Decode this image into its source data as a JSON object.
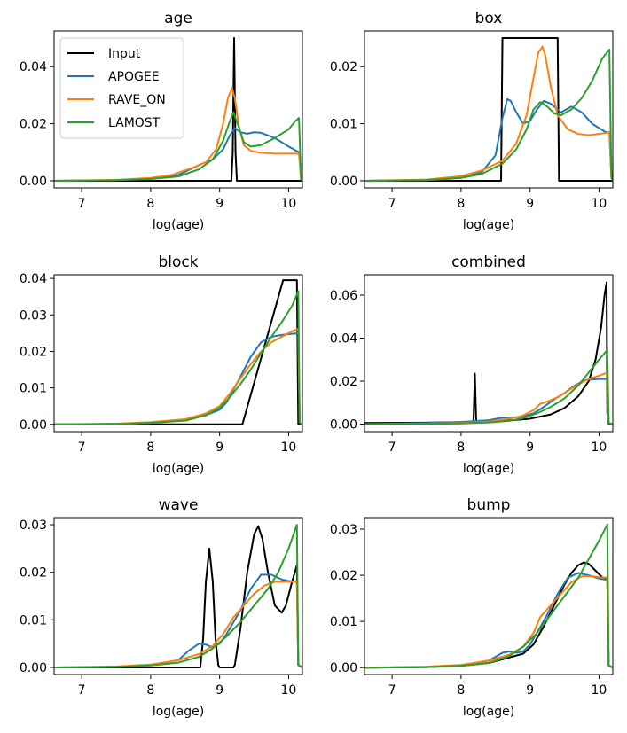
{
  "colors": {
    "Input": "#000000",
    "APOGEE": "#1f77b4",
    "RAVE_ON": "#ff7f0e",
    "LAMOST": "#2ca02c"
  },
  "legend": {
    "placement": "upper-left of first panel",
    "entries": [
      "Input",
      "APOGEE",
      "RAVE_ON",
      "LAMOST"
    ]
  },
  "chart_data": [
    {
      "type": "line",
      "title": "age",
      "xlabel": "log(age)",
      "xlim": [
        6.6,
        10.2
      ],
      "ylim": [
        -0.0025,
        0.0525
      ],
      "xticks": [
        "7",
        "8",
        "9",
        "10"
      ],
      "yticks": [
        "0.00",
        "0.02",
        "0.04"
      ],
      "series": [
        {
          "name": "Input",
          "x": [
            6.6,
            9.17,
            9.19,
            9.21,
            9.23,
            9.25,
            10.2
          ],
          "y": [
            0,
            0,
            0.01,
            0.05,
            0.01,
            0,
            0
          ]
        },
        {
          "name": "APOGEE",
          "x": [
            6.6,
            7.5,
            8.0,
            8.4,
            8.7,
            8.9,
            9.05,
            9.15,
            9.22,
            9.3,
            9.4,
            9.5,
            9.6,
            9.8,
            10.0,
            10.15,
            10.18,
            10.2
          ],
          "y": [
            0,
            0.0002,
            0.0008,
            0.002,
            0.0055,
            0.0075,
            0.011,
            0.016,
            0.0185,
            0.017,
            0.0165,
            0.017,
            0.0168,
            0.015,
            0.012,
            0.01,
            0.0005,
            0
          ]
        },
        {
          "name": "RAVE_ON",
          "x": [
            6.6,
            7.5,
            8.0,
            8.3,
            8.6,
            8.8,
            8.95,
            9.05,
            9.12,
            9.18,
            9.22,
            9.28,
            9.35,
            9.45,
            9.6,
            9.8,
            10.0,
            10.15,
            10.18,
            10.2
          ],
          "y": [
            0,
            0.0003,
            0.001,
            0.002,
            0.0045,
            0.0065,
            0.011,
            0.02,
            0.029,
            0.0325,
            0.029,
            0.019,
            0.0125,
            0.0105,
            0.0098,
            0.0095,
            0.0095,
            0.0095,
            0.0005,
            0
          ]
        },
        {
          "name": "LAMOST",
          "x": [
            6.6,
            7.5,
            8.0,
            8.4,
            8.7,
            8.9,
            9.05,
            9.15,
            9.2,
            9.26,
            9.35,
            9.45,
            9.6,
            9.8,
            10.0,
            10.1,
            10.15,
            10.18,
            10.2
          ],
          "y": [
            0,
            0.0002,
            0.0006,
            0.0015,
            0.004,
            0.0075,
            0.014,
            0.021,
            0.024,
            0.02,
            0.0135,
            0.012,
            0.0125,
            0.015,
            0.018,
            0.021,
            0.022,
            0.0005,
            0
          ]
        }
      ]
    },
    {
      "type": "line",
      "title": "box",
      "xlabel": "log(age)",
      "xlim": [
        6.6,
        10.2
      ],
      "ylim": [
        -0.00125,
        0.02625
      ],
      "xticks": [
        "7",
        "8",
        "9",
        "10"
      ],
      "yticks": [
        "0.00",
        "0.01",
        "0.02"
      ],
      "series": [
        {
          "name": "Input",
          "x": [
            6.6,
            8.58,
            8.6,
            9.4,
            9.42,
            10.2
          ],
          "y": [
            0,
            0,
            0.025,
            0.025,
            0,
            0
          ]
        },
        {
          "name": "APOGEE",
          "x": [
            6.6,
            7.5,
            8.0,
            8.3,
            8.5,
            8.6,
            8.67,
            8.72,
            8.8,
            8.9,
            9.0,
            9.1,
            9.2,
            9.3,
            9.45,
            9.6,
            9.75,
            9.9,
            10.1,
            10.15,
            10.18,
            10.2
          ],
          "y": [
            0,
            0.0001,
            0.0005,
            0.0015,
            0.0045,
            0.011,
            0.0143,
            0.014,
            0.012,
            0.01,
            0.0105,
            0.0125,
            0.014,
            0.0135,
            0.012,
            0.013,
            0.012,
            0.01,
            0.0085,
            0.0085,
            0.0005,
            0
          ]
        },
        {
          "name": "RAVE_ON",
          "x": [
            6.6,
            7.5,
            8.0,
            8.3,
            8.6,
            8.8,
            8.95,
            9.05,
            9.12,
            9.18,
            9.22,
            9.3,
            9.4,
            9.55,
            9.7,
            9.85,
            10.0,
            10.15,
            10.18,
            10.2
          ],
          "y": [
            0,
            0.0002,
            0.0008,
            0.0018,
            0.0035,
            0.0065,
            0.0115,
            0.018,
            0.0225,
            0.0235,
            0.022,
            0.0165,
            0.0115,
            0.009,
            0.0082,
            0.008,
            0.0082,
            0.0085,
            0.0005,
            0
          ]
        },
        {
          "name": "LAMOST",
          "x": [
            6.6,
            7.5,
            8.0,
            8.3,
            8.6,
            8.8,
            8.95,
            9.05,
            9.15,
            9.25,
            9.35,
            9.45,
            9.6,
            9.75,
            9.9,
            10.05,
            10.15,
            10.18,
            10.2
          ],
          "y": [
            0,
            0.0001,
            0.0005,
            0.0012,
            0.003,
            0.0055,
            0.009,
            0.0125,
            0.0138,
            0.013,
            0.0118,
            0.0115,
            0.0125,
            0.0145,
            0.0175,
            0.0215,
            0.023,
            0.0005,
            0
          ]
        }
      ]
    },
    {
      "type": "line",
      "title": "block",
      "xlabel": "log(age)",
      "xlim": [
        6.6,
        10.2
      ],
      "ylim": [
        -0.002,
        0.041
      ],
      "xticks": [
        "7",
        "8",
        "9",
        "10"
      ],
      "yticks": [
        "0.00",
        "0.01",
        "0.02",
        "0.03",
        "0.04"
      ],
      "series": [
        {
          "name": "Input",
          "x": [
            6.6,
            9.33,
            9.92,
            10.12,
            10.14,
            10.2
          ],
          "y": [
            0,
            0,
            0.0395,
            0.0395,
            0,
            0
          ]
        },
        {
          "name": "APOGEE",
          "x": [
            6.6,
            7.5,
            8.0,
            8.5,
            8.8,
            9.0,
            9.1,
            9.2,
            9.3,
            9.45,
            9.6,
            9.75,
            9.9,
            10.05,
            10.14,
            10.16,
            10.2
          ],
          "y": [
            0,
            0.0001,
            0.0004,
            0.0012,
            0.0025,
            0.004,
            0.006,
            0.0095,
            0.013,
            0.0185,
            0.0225,
            0.024,
            0.0245,
            0.0248,
            0.025,
            0.0005,
            0
          ]
        },
        {
          "name": "RAVE_ON",
          "x": [
            6.6,
            7.5,
            8.0,
            8.5,
            8.8,
            9.0,
            9.15,
            9.3,
            9.45,
            9.6,
            9.75,
            9.9,
            10.05,
            10.14,
            10.16,
            10.2
          ],
          "y": [
            0,
            0.0002,
            0.0006,
            0.0014,
            0.003,
            0.005,
            0.0085,
            0.0125,
            0.0165,
            0.02,
            0.0225,
            0.024,
            0.0255,
            0.0262,
            0.0005,
            0
          ]
        },
        {
          "name": "LAMOST",
          "x": [
            6.6,
            7.5,
            8.0,
            8.5,
            8.8,
            9.0,
            9.15,
            9.3,
            9.45,
            9.6,
            9.75,
            9.9,
            10.05,
            10.14,
            10.16,
            10.2
          ],
          "y": [
            0,
            0.0001,
            0.0004,
            0.001,
            0.0025,
            0.0045,
            0.0075,
            0.011,
            0.015,
            0.0195,
            0.024,
            0.028,
            0.0325,
            0.0365,
            0.0005,
            0
          ]
        }
      ]
    },
    {
      "type": "line",
      "title": "combined",
      "xlabel": "log(age)",
      "xlim": [
        6.6,
        10.2
      ],
      "ylim": [
        -0.0035,
        0.0695
      ],
      "xticks": [
        "7",
        "8",
        "9",
        "10"
      ],
      "yticks": [
        "0.00",
        "0.02",
        "0.04",
        "0.06"
      ],
      "series": [
        {
          "name": "Input",
          "x": [
            6.6,
            7.5,
            8.18,
            8.2,
            8.22,
            8.5,
            9.0,
            9.3,
            9.5,
            9.7,
            9.85,
            9.95,
            10.03,
            10.08,
            10.11,
            10.12,
            10.14,
            10.2
          ],
          "y": [
            0.0005,
            0.0007,
            0.001,
            0.0235,
            0.001,
            0.0012,
            0.0025,
            0.0045,
            0.0075,
            0.013,
            0.02,
            0.03,
            0.045,
            0.06,
            0.066,
            0.005,
            0,
            0
          ]
        },
        {
          "name": "APOGEE",
          "x": [
            6.6,
            7.5,
            8.0,
            8.4,
            8.6,
            8.75,
            8.9,
            9.05,
            9.2,
            9.35,
            9.5,
            9.65,
            9.8,
            10.0,
            10.12,
            10.14,
            10.2
          ],
          "y": [
            0,
            0.0005,
            0.001,
            0.0018,
            0.003,
            0.003,
            0.0035,
            0.005,
            0.008,
            0.0115,
            0.0145,
            0.018,
            0.0205,
            0.021,
            0.021,
            0.0005,
            0
          ]
        },
        {
          "name": "RAVE_ON",
          "x": [
            6.6,
            7.5,
            8.0,
            8.4,
            8.7,
            8.9,
            9.05,
            9.15,
            9.25,
            9.4,
            9.55,
            9.7,
            9.85,
            10.0,
            10.12,
            10.14,
            10.2
          ],
          "y": [
            0,
            0.0002,
            0.0005,
            0.0012,
            0.0025,
            0.004,
            0.0065,
            0.0095,
            0.0105,
            0.0125,
            0.0155,
            0.0185,
            0.021,
            0.0225,
            0.024,
            0.0005,
            0
          ]
        },
        {
          "name": "LAMOST",
          "x": [
            6.6,
            7.5,
            8.0,
            8.4,
            8.7,
            8.9,
            9.1,
            9.3,
            9.5,
            9.7,
            9.85,
            10.0,
            10.12,
            10.14,
            10.2
          ],
          "y": [
            0,
            0.0001,
            0.0003,
            0.0008,
            0.0015,
            0.0028,
            0.005,
            0.008,
            0.012,
            0.018,
            0.024,
            0.03,
            0.0345,
            0.0005,
            0
          ]
        }
      ]
    },
    {
      "type": "line",
      "title": "wave",
      "xlabel": "log(age)",
      "xlim": [
        6.6,
        10.2
      ],
      "ylim": [
        -0.0015,
        0.0315
      ],
      "xticks": [
        "7",
        "8",
        "9",
        "10"
      ],
      "yticks": [
        "0.00",
        "0.01",
        "0.02",
        "0.03"
      ],
      "series": [
        {
          "name": "Input",
          "x": [
            6.6,
            8.72,
            8.76,
            8.8,
            8.85,
            8.9,
            8.94,
            8.98,
            9.0,
            9.2,
            9.22,
            9.3,
            9.4,
            9.5,
            9.56,
            9.62,
            9.7,
            9.8,
            9.9,
            9.96,
            10.05,
            10.12,
            10.14,
            10.2
          ],
          "y": [
            0,
            0,
            0.006,
            0.018,
            0.025,
            0.018,
            0.006,
            0.0005,
            0,
            0,
            0.0005,
            0.008,
            0.02,
            0.028,
            0.0297,
            0.027,
            0.02,
            0.013,
            0.0115,
            0.013,
            0.018,
            0.0215,
            0.0005,
            0
          ]
        },
        {
          "name": "APOGEE",
          "x": [
            6.6,
            7.5,
            8.0,
            8.4,
            8.55,
            8.7,
            8.8,
            8.9,
            9.0,
            9.1,
            9.2,
            9.3,
            9.45,
            9.6,
            9.75,
            9.9,
            10.05,
            10.12,
            10.14,
            10.2
          ],
          "y": [
            0,
            0.0001,
            0.0005,
            0.0015,
            0.0035,
            0.005,
            0.0048,
            0.0042,
            0.005,
            0.007,
            0.0095,
            0.012,
            0.0165,
            0.0195,
            0.0195,
            0.0185,
            0.018,
            0.018,
            0.0005,
            0
          ]
        },
        {
          "name": "RAVE_ON",
          "x": [
            6.6,
            7.5,
            8.0,
            8.4,
            8.7,
            8.9,
            9.05,
            9.2,
            9.35,
            9.5,
            9.65,
            9.8,
            9.95,
            10.05,
            10.12,
            10.14,
            10.2
          ],
          "y": [
            0,
            0.0002,
            0.0006,
            0.0015,
            0.0028,
            0.0045,
            0.007,
            0.0105,
            0.013,
            0.0155,
            0.0172,
            0.018,
            0.018,
            0.018,
            0.018,
            0.0005,
            0
          ]
        },
        {
          "name": "LAMOST",
          "x": [
            6.6,
            7.5,
            8.0,
            8.4,
            8.7,
            8.9,
            9.1,
            9.3,
            9.5,
            9.7,
            9.85,
            10.0,
            10.12,
            10.14,
            10.2
          ],
          "y": [
            0,
            0.0001,
            0.0004,
            0.001,
            0.0022,
            0.004,
            0.0065,
            0.0095,
            0.013,
            0.0165,
            0.02,
            0.025,
            0.03,
            0.0005,
            0
          ]
        }
      ]
    },
    {
      "type": "line",
      "title": "bump",
      "xlabel": "log(age)",
      "xlim": [
        6.6,
        10.2
      ],
      "ylim": [
        -0.0015,
        0.0325
      ],
      "xticks": [
        "7",
        "8",
        "9",
        "10"
      ],
      "yticks": [
        "0.00",
        "0.01",
        "0.02",
        "0.03"
      ],
      "series": [
        {
          "name": "Input",
          "x": [
            6.6,
            7.5,
            8.0,
            8.4,
            8.7,
            8.9,
            9.05,
            9.2,
            9.35,
            9.5,
            9.6,
            9.7,
            9.78,
            9.85,
            9.95,
            10.05,
            10.12,
            10.14,
            10.2
          ],
          "y": [
            0,
            0.0001,
            0.0004,
            0.001,
            0.0022,
            0.003,
            0.005,
            0.009,
            0.0135,
            0.018,
            0.0205,
            0.0222,
            0.0228,
            0.0225,
            0.021,
            0.0195,
            0.019,
            0.0005,
            0
          ]
        },
        {
          "name": "APOGEE",
          "x": [
            6.6,
            7.5,
            8.0,
            8.4,
            8.6,
            8.7,
            8.8,
            8.9,
            9.0,
            9.1,
            9.25,
            9.4,
            9.55,
            9.7,
            9.85,
            10.0,
            10.12,
            10.14,
            10.2
          ],
          "y": [
            0,
            0.0001,
            0.0005,
            0.0015,
            0.0032,
            0.0035,
            0.0032,
            0.0035,
            0.005,
            0.0075,
            0.0115,
            0.016,
            0.0195,
            0.0205,
            0.02,
            0.0193,
            0.019,
            0.0005,
            0
          ]
        },
        {
          "name": "RAVE_ON",
          "x": [
            6.6,
            7.5,
            8.0,
            8.4,
            8.7,
            8.9,
            9.05,
            9.15,
            9.3,
            9.45,
            9.6,
            9.75,
            9.9,
            10.05,
            10.12,
            10.14,
            10.2
          ],
          "y": [
            0,
            0.0002,
            0.0006,
            0.0015,
            0.0028,
            0.0045,
            0.0075,
            0.011,
            0.0135,
            0.016,
            0.0185,
            0.0198,
            0.0198,
            0.0195,
            0.0195,
            0.0005,
            0
          ]
        },
        {
          "name": "LAMOST",
          "x": [
            6.6,
            7.5,
            8.0,
            8.4,
            8.7,
            8.9,
            9.1,
            9.3,
            9.5,
            9.7,
            9.85,
            10.0,
            10.12,
            10.14,
            10.2
          ],
          "y": [
            0,
            0.0001,
            0.0004,
            0.001,
            0.0025,
            0.0045,
            0.0075,
            0.0115,
            0.0155,
            0.0195,
            0.0235,
            0.0275,
            0.031,
            0.0005,
            0
          ]
        }
      ]
    }
  ]
}
